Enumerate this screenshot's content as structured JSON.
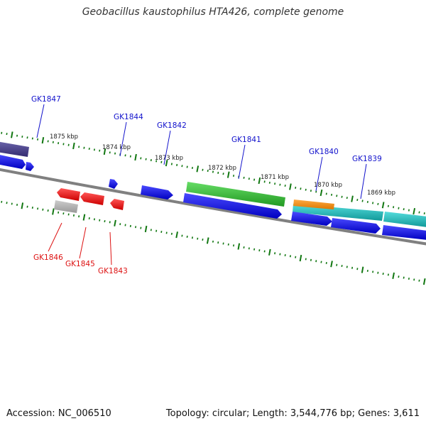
{
  "title": "Geobacillus kaustophilus HTA426, complete genome",
  "footer": {
    "accession": "Accession: NC_006510",
    "topology": "Topology: circular; Length: 3,544,776 bp; Genes: 3,611"
  },
  "colors": {
    "forward_gene": "#1010e8",
    "reverse_gene": "#ee1111",
    "dark_gene": "#4a4488",
    "green_feature": "#33bb33",
    "orange_feature": "#ee8811",
    "cyan_feature": "#22bbbb",
    "gray_feature": "#aaaaaa",
    "backbone": "#808080",
    "ticks": "#117711",
    "forward_label": "#1111cc",
    "reverse_label": "#dd1111"
  },
  "scale_labels": [
    "1875 kbp",
    "1874 kbp",
    "1873 kbp",
    "1872 kbp",
    "1871 kbp",
    "1870 kbp",
    "1869 kbp"
  ],
  "forward_genes": [
    {
      "name": "GK1847"
    },
    {
      "name": "GK1844"
    },
    {
      "name": "GK1842"
    },
    {
      "name": "GK1841"
    },
    {
      "name": "GK1840"
    },
    {
      "name": "GK1839"
    }
  ],
  "reverse_genes": [
    {
      "name": "GK1846"
    },
    {
      "name": "GK1845"
    },
    {
      "name": "GK1843"
    }
  ]
}
